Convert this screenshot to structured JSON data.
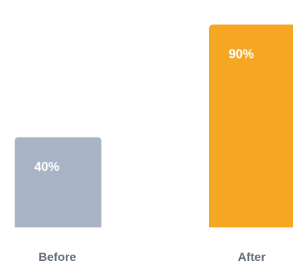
{
  "chart_data": {
    "type": "bar",
    "categories": [
      "Before",
      "After"
    ],
    "values": [
      40,
      90
    ],
    "value_labels": [
      "40%",
      "90%"
    ],
    "colors": [
      "#a8b3c5",
      "#f5a623"
    ],
    "ylim": [
      0,
      100
    ],
    "grid": false,
    "legend": "none",
    "title": "",
    "xlabel": "",
    "ylabel": ""
  }
}
